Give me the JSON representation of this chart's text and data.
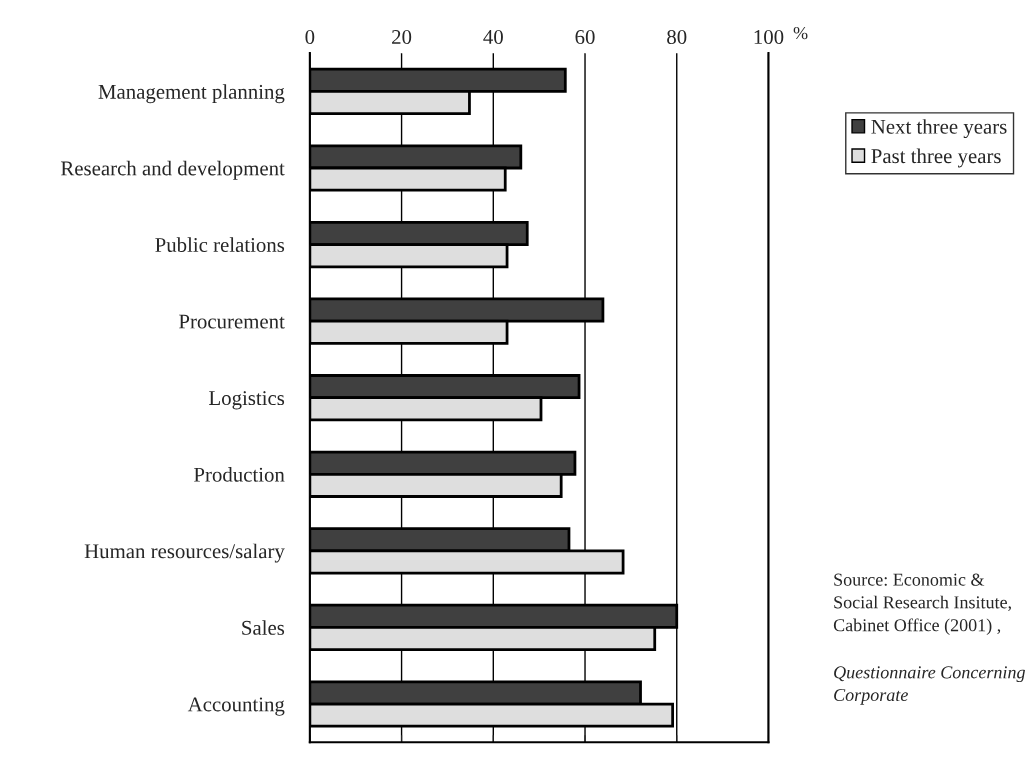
{
  "chart_data": {
    "type": "bar",
    "orientation": "horizontal",
    "xlabel": "%",
    "categories": [
      "Management planning",
      "Research and development",
      "Public relations",
      "Procurement",
      "Logistics",
      "Production",
      "Human resources/salary",
      "Sales",
      "Accounting"
    ],
    "series": [
      {
        "name": "Next three years",
        "color": "#404040",
        "values": [
          55.7,
          46.0,
          47.4,
          63.9,
          58.7,
          57.8,
          56.5,
          80.0,
          72.1
        ]
      },
      {
        "name": "Past three years",
        "color": "#dedede",
        "values": [
          34.8,
          42.6,
          43.0,
          43.0,
          50.4,
          54.8,
          68.3,
          75.2,
          79.1
        ]
      }
    ],
    "xlim": [
      0,
      100
    ],
    "xticks": [
      0,
      20,
      40,
      60,
      80,
      100
    ],
    "grid": "x",
    "legend": "right",
    "annotations": [
      "Source: Economic & Social Research Insitute, Cabinet Office (2001) ,",
      "Questionnaire Concerning Corporate"
    ]
  }
}
